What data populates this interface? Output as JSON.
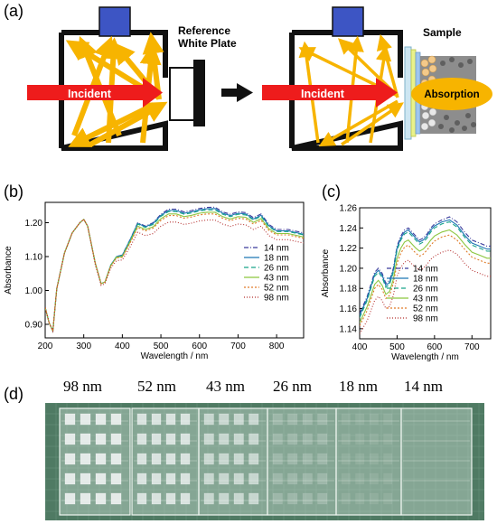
{
  "panels": {
    "a": "(a)",
    "b": "(b)",
    "c": "(c)",
    "d": "(d)"
  },
  "schematic": {
    "incident_label": "Incident",
    "reference_label_line1": "Reference",
    "reference_label_line2": "White Plate",
    "sample_label": "Sample",
    "absorption_label": "Absorption"
  },
  "colors": {
    "legend": [
      "#3b3b9c",
      "#1f77b4",
      "#17a589",
      "#8cc63f",
      "#e07b28",
      "#b5302f"
    ],
    "arrow_orange": "#f7b400",
    "arrow_red": "#ee1c1c",
    "detector_blue": "#3d55c4"
  },
  "chart_data": [
    {
      "type": "line",
      "xlabel": "Wavelength / nm",
      "ylabel": "Absorbance",
      "xlim": [
        200,
        870
      ],
      "ylim": [
        0.86,
        1.26
      ],
      "xticks": [
        200,
        300,
        400,
        500,
        600,
        700,
        800
      ],
      "yticks": [
        0.9,
        1.0,
        1.1,
        1.2
      ],
      "ytick_labels": [
        "0.90",
        "1.00",
        "1.10",
        "1.20"
      ],
      "legend_position": "bottom-right",
      "x": [
        200,
        210,
        220,
        230,
        250,
        270,
        290,
        300,
        310,
        330,
        345,
        355,
        370,
        385,
        400,
        420,
        440,
        460,
        480,
        500,
        520,
        540,
        560,
        580,
        600,
        620,
        640,
        660,
        680,
        700,
        720,
        740,
        760,
        780,
        800,
        830,
        870
      ],
      "series": [
        {
          "name": "14 nm",
          "values": [
            0.95,
            0.905,
            0.88,
            1.005,
            1.11,
            1.17,
            1.2,
            1.21,
            1.19,
            1.08,
            1.02,
            1.025,
            1.075,
            1.1,
            1.105,
            1.15,
            1.2,
            1.19,
            1.2,
            1.225,
            1.24,
            1.24,
            1.232,
            1.236,
            1.242,
            1.245,
            1.246,
            1.232,
            1.225,
            1.232,
            1.23,
            1.215,
            1.226,
            1.195,
            1.18,
            1.18,
            1.17
          ]
        },
        {
          "name": "18 nm",
          "values": [
            0.95,
            0.905,
            0.88,
            1.005,
            1.11,
            1.17,
            1.2,
            1.21,
            1.19,
            1.08,
            1.02,
            1.025,
            1.075,
            1.1,
            1.104,
            1.149,
            1.198,
            1.188,
            1.198,
            1.222,
            1.236,
            1.236,
            1.228,
            1.232,
            1.238,
            1.241,
            1.242,
            1.228,
            1.221,
            1.228,
            1.226,
            1.211,
            1.222,
            1.191,
            1.176,
            1.176,
            1.166
          ]
        },
        {
          "name": "26 nm",
          "values": [
            0.95,
            0.905,
            0.88,
            1.005,
            1.11,
            1.17,
            1.2,
            1.21,
            1.19,
            1.08,
            1.02,
            1.025,
            1.075,
            1.1,
            1.103,
            1.147,
            1.196,
            1.186,
            1.195,
            1.219,
            1.233,
            1.233,
            1.225,
            1.229,
            1.235,
            1.238,
            1.238,
            1.225,
            1.218,
            1.225,
            1.223,
            1.208,
            1.219,
            1.188,
            1.174,
            1.174,
            1.164
          ]
        },
        {
          "name": "43 nm",
          "values": [
            0.95,
            0.905,
            0.88,
            1.005,
            1.11,
            1.17,
            1.2,
            1.21,
            1.19,
            1.08,
            1.02,
            1.025,
            1.073,
            1.098,
            1.1,
            1.143,
            1.19,
            1.18,
            1.188,
            1.212,
            1.226,
            1.226,
            1.218,
            1.222,
            1.228,
            1.231,
            1.231,
            1.218,
            1.211,
            1.218,
            1.216,
            1.201,
            1.212,
            1.182,
            1.168,
            1.168,
            1.158
          ]
        },
        {
          "name": "52 nm",
          "values": [
            0.95,
            0.905,
            0.88,
            1.005,
            1.11,
            1.17,
            1.2,
            1.21,
            1.19,
            1.08,
            1.02,
            1.025,
            1.072,
            1.096,
            1.098,
            1.14,
            1.186,
            1.176,
            1.184,
            1.207,
            1.221,
            1.221,
            1.213,
            1.217,
            1.223,
            1.226,
            1.226,
            1.213,
            1.206,
            1.213,
            1.211,
            1.196,
            1.207,
            1.177,
            1.164,
            1.164,
            1.154
          ]
        },
        {
          "name": "98 nm",
          "values": [
            0.95,
            0.905,
            0.88,
            1.005,
            1.11,
            1.17,
            1.2,
            1.21,
            1.19,
            1.075,
            1.015,
            1.02,
            1.066,
            1.088,
            1.09,
            1.128,
            1.172,
            1.162,
            1.168,
            1.19,
            1.202,
            1.202,
            1.195,
            1.199,
            1.205,
            1.208,
            1.208,
            1.196,
            1.189,
            1.196,
            1.194,
            1.18,
            1.19,
            1.162,
            1.15,
            1.15,
            1.14
          ]
        }
      ]
    },
    {
      "type": "line",
      "xlabel": "Wavelength / nm",
      "ylabel": "Absorbance",
      "xlim": [
        400,
        750
      ],
      "ylim": [
        1.13,
        1.26
      ],
      "xticks": [
        400,
        500,
        600,
        700
      ],
      "yticks": [
        1.14,
        1.16,
        1.18,
        1.2,
        1.22,
        1.24,
        1.26
      ],
      "ytick_labels": [
        "1.14",
        "1.16",
        "1.18",
        "1.20",
        "1.22",
        "1.24",
        "1.26"
      ],
      "legend_position": "bottom",
      "x": [
        400,
        420,
        440,
        450,
        460,
        470,
        480,
        490,
        500,
        510,
        520,
        530,
        540,
        550,
        560,
        570,
        580,
        590,
        600,
        620,
        640,
        660,
        680,
        700,
        720,
        740,
        750
      ],
      "series": [
        {
          "name": "14 nm",
          "values": [
            1.155,
            1.172,
            1.196,
            1.2,
            1.195,
            1.185,
            1.188,
            1.2,
            1.222,
            1.232,
            1.238,
            1.24,
            1.236,
            1.232,
            1.228,
            1.23,
            1.234,
            1.24,
            1.244,
            1.248,
            1.251,
            1.246,
            1.236,
            1.228,
            1.225,
            1.222,
            1.222
          ]
        },
        {
          "name": "18 nm",
          "values": [
            1.153,
            1.17,
            1.194,
            1.198,
            1.193,
            1.183,
            1.186,
            1.198,
            1.22,
            1.23,
            1.236,
            1.238,
            1.234,
            1.23,
            1.226,
            1.228,
            1.232,
            1.238,
            1.242,
            1.246,
            1.248,
            1.243,
            1.233,
            1.225,
            1.222,
            1.219,
            1.219
          ]
        },
        {
          "name": "26 nm",
          "values": [
            1.151,
            1.168,
            1.192,
            1.196,
            1.191,
            1.181,
            1.184,
            1.196,
            1.218,
            1.228,
            1.234,
            1.236,
            1.232,
            1.228,
            1.224,
            1.226,
            1.23,
            1.236,
            1.24,
            1.244,
            1.246,
            1.241,
            1.231,
            1.223,
            1.22,
            1.217,
            1.217
          ]
        },
        {
          "name": "43 nm",
          "values": [
            1.146,
            1.162,
            1.184,
            1.188,
            1.183,
            1.174,
            1.177,
            1.189,
            1.21,
            1.22,
            1.226,
            1.228,
            1.224,
            1.22,
            1.217,
            1.219,
            1.223,
            1.228,
            1.232,
            1.236,
            1.238,
            1.233,
            1.224,
            1.216,
            1.213,
            1.21,
            1.21
          ]
        },
        {
          "name": "52 nm",
          "values": [
            1.143,
            1.158,
            1.18,
            1.184,
            1.179,
            1.17,
            1.173,
            1.185,
            1.205,
            1.215,
            1.221,
            1.223,
            1.219,
            1.215,
            1.212,
            1.214,
            1.218,
            1.223,
            1.227,
            1.231,
            1.233,
            1.228,
            1.219,
            1.211,
            1.208,
            1.205,
            1.205
          ]
        },
        {
          "name": "98 nm",
          "values": [
            1.135,
            1.148,
            1.168,
            1.172,
            1.168,
            1.16,
            1.162,
            1.173,
            1.192,
            1.201,
            1.206,
            1.208,
            1.204,
            1.201,
            1.198,
            1.2,
            1.204,
            1.209,
            1.212,
            1.216,
            1.218,
            1.214,
            1.205,
            1.198,
            1.195,
            1.192,
            1.192
          ]
        }
      ]
    }
  ],
  "photo": {
    "labels": [
      "98 nm",
      "52 nm",
      "43 nm",
      "26 nm",
      "18 nm",
      "14 nm"
    ],
    "patch_opacity": [
      0.85,
      0.75,
      0.6,
      0.22,
      0.1,
      0.0
    ]
  }
}
